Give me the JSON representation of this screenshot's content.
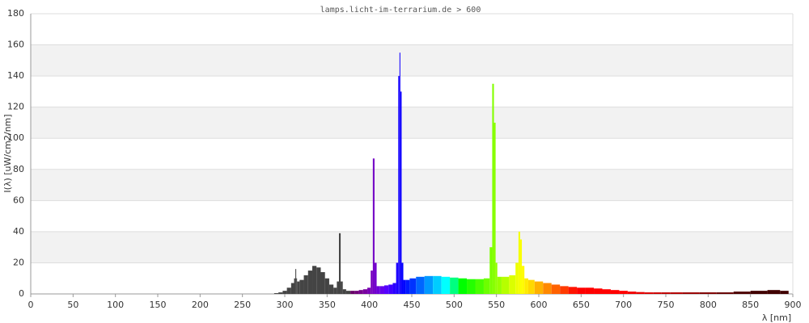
{
  "chart_data": {
    "type": "spectrum",
    "title": "lamps.licht-im-terrarium.de > 600",
    "x_label": "λ [nm]",
    "y_label": "I(λ) [uW/cm2/nm]",
    "xlim": [
      0,
      900
    ],
    "xticks": [
      0,
      50,
      100,
      150,
      200,
      250,
      300,
      350,
      400,
      450,
      500,
      550,
      600,
      650,
      700,
      750,
      800,
      850,
      900
    ],
    "ylim": [
      0,
      180
    ],
    "yticks": [
      0,
      20,
      40,
      60,
      80,
      100,
      120,
      140,
      160,
      180
    ],
    "grid": true,
    "x": [
      290,
      295,
      300,
      305,
      310,
      312,
      313,
      314,
      315,
      320,
      325,
      330,
      335,
      340,
      345,
      350,
      355,
      360,
      363,
      365,
      367,
      370,
      375,
      380,
      385,
      390,
      395,
      400,
      403,
      405,
      407,
      410,
      415,
      420,
      425,
      430,
      433,
      435,
      436,
      437,
      439,
      441,
      445,
      450,
      460,
      470,
      480,
      490,
      500,
      510,
      520,
      530,
      540,
      544,
      546,
      548,
      550,
      552,
      560,
      570,
      575,
      577,
      579,
      581,
      585,
      590,
      600,
      610,
      620,
      630,
      640,
      650,
      660,
      670,
      680,
      690,
      700,
      710,
      720,
      730,
      740,
      750,
      760,
      780,
      800,
      820,
      840,
      860,
      880,
      890
    ],
    "values": [
      0.5,
      1,
      2,
      4,
      7,
      10,
      16,
      10,
      8,
      9,
      12,
      15,
      18,
      17,
      14,
      10,
      6,
      4,
      8,
      39,
      8,
      3,
      2,
      2,
      2,
      2.5,
      3,
      4,
      15,
      87,
      20,
      5,
      5,
      5.5,
      6,
      7,
      20,
      140,
      155,
      130,
      20,
      9,
      9,
      10,
      11,
      11.5,
      11.5,
      11,
      10.5,
      10,
      9.5,
      9.5,
      10,
      30,
      135,
      110,
      20,
      11,
      11,
      12,
      20,
      40,
      35,
      18,
      10,
      9,
      8,
      7,
      6,
      5,
      4.5,
      4,
      4,
      3.5,
      3,
      2.5,
      2,
      1.5,
      1.2,
      1,
      1,
      1,
      1,
      1,
      1,
      1,
      1.5,
      2,
      2.5,
      2
    ]
  }
}
